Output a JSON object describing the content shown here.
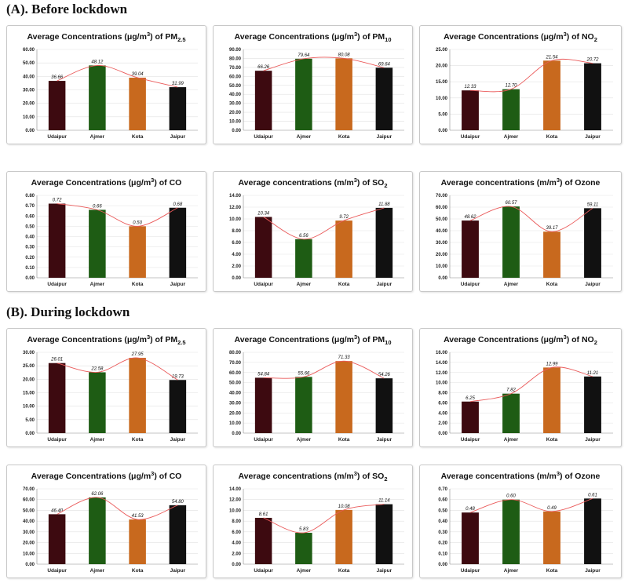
{
  "sections": [
    {
      "title": "(A). Before lockdown"
    },
    {
      "title": "(B). During lockdown"
    }
  ],
  "colors": {
    "bar_udaipur": "#3d0a10",
    "bar_ajmer": "#1e5c14",
    "bar_kota": "#c8691e",
    "bar_jaipur": "#111111",
    "trend_line": "#ea5a5a"
  },
  "chart_data": [
    {
      "type": "bar",
      "section": 0,
      "title_pre": "Average Concentrations (μg/m",
      "title_sup": "3",
      "title_mid": ") of PM",
      "title_sub": "2.5",
      "categories": [
        "Udaipur",
        "Ajmer",
        "Kota",
        "Jaipur"
      ],
      "values": [
        36.66,
        48.12,
        39.04,
        31.99
      ],
      "ylim": [
        0,
        60
      ],
      "yticks": [
        "0.00",
        "10.00",
        "20.00",
        "30.00",
        "40.00",
        "50.00",
        "60.00"
      ],
      "trendline": true
    },
    {
      "type": "bar",
      "section": 0,
      "title_pre": "Average Concentrations (μg/m",
      "title_sup": "3",
      "title_mid": ") of PM",
      "title_sub": "10",
      "categories": [
        "Udaipur",
        "Ajmer",
        "Kota",
        "Jaipur"
      ],
      "values": [
        66.26,
        79.64,
        80.08,
        69.64
      ],
      "ylim": [
        0,
        90
      ],
      "yticks": [
        "0.00",
        "10.00",
        "20.00",
        "30.00",
        "40.00",
        "50.00",
        "60.00",
        "70.00",
        "80.00",
        "90.00"
      ],
      "trendline": true
    },
    {
      "type": "bar",
      "section": 0,
      "title_pre": "Average Concentrations (μg/m",
      "title_sup": "3",
      "title_mid": ") of NO",
      "title_sub": "2",
      "categories": [
        "Udaipur",
        "Ajmer",
        "Kota",
        "Jaipur"
      ],
      "values": [
        12.33,
        12.7,
        21.54,
        20.72
      ],
      "ylim": [
        0,
        25
      ],
      "yticks": [
        "0.00",
        "5.00",
        "10.00",
        "15.00",
        "20.00",
        "25.00"
      ],
      "trendline": true
    },
    {
      "type": "bar",
      "section": 0,
      "title_pre": "Average Concentrations (μg/m",
      "title_sup": "3",
      "title_mid": ") of CO",
      "title_sub": "",
      "categories": [
        "Udaipur",
        "Ajmer",
        "Kota",
        "Jaipur"
      ],
      "values": [
        0.72,
        0.66,
        0.5,
        0.68
      ],
      "ylim": [
        0,
        0.8
      ],
      "yticks": [
        "0.00",
        "0.10",
        "0.20",
        "0.30",
        "0.40",
        "0.50",
        "0.60",
        "0.70",
        "0.80"
      ],
      "trendline": true
    },
    {
      "type": "bar",
      "section": 0,
      "title_pre": "Average concentrations (m/m",
      "title_sup": "3",
      "title_mid": ") of SO",
      "title_sub": "2",
      "categories": [
        "Udaipur",
        "Ajmer",
        "Kota",
        "Jaipur"
      ],
      "values": [
        10.34,
        6.56,
        9.72,
        11.88
      ],
      "ylim": [
        0,
        14
      ],
      "yticks": [
        "0.00",
        "2.00",
        "4.00",
        "6.00",
        "8.00",
        "10.00",
        "12.00",
        "14.00"
      ],
      "trendline": true
    },
    {
      "type": "bar",
      "section": 0,
      "title_pre": "Average concentrations (m/m",
      "title_sup": "3",
      "title_mid": ") of Ozone",
      "title_sub": "",
      "categories": [
        "Udaipur",
        "Ajmer",
        "Kota",
        "Jaipur"
      ],
      "values": [
        48.62,
        60.57,
        39.17,
        59.11
      ],
      "ylim": [
        0,
        70
      ],
      "yticks": [
        "0.00",
        "10.00",
        "20.00",
        "30.00",
        "40.00",
        "50.00",
        "60.00",
        "70.00"
      ],
      "trendline": true
    },
    {
      "type": "bar",
      "section": 1,
      "title_pre": "Average Concentrations (μg/m",
      "title_sup": "3",
      "title_mid": ") of PM",
      "title_sub": "2.5",
      "categories": [
        "Udaipur",
        "Ajmer",
        "Kota",
        "Jaipur"
      ],
      "values": [
        26.01,
        22.58,
        27.95,
        19.73
      ],
      "ylim": [
        0,
        30
      ],
      "yticks": [
        "0.00",
        "5.00",
        "10.00",
        "15.00",
        "20.00",
        "25.00",
        "30.00"
      ],
      "trendline": true
    },
    {
      "type": "bar",
      "section": 1,
      "title_pre": "Average Concentrations (μg/m",
      "title_sup": "3",
      "title_mid": ") of PM",
      "title_sub": "10",
      "categories": [
        "Udaipur",
        "Ajmer",
        "Kota",
        "Jaipur"
      ],
      "values": [
        54.84,
        55.66,
        71.33,
        54.26
      ],
      "ylim": [
        0,
        80
      ],
      "yticks": [
        "0.00",
        "10.00",
        "20.00",
        "30.00",
        "40.00",
        "50.00",
        "60.00",
        "70.00",
        "80.00"
      ],
      "trendline": true
    },
    {
      "type": "bar",
      "section": 1,
      "title_pre": "Average Concentrations (μg/m",
      "title_sup": "3",
      "title_mid": ") of NO",
      "title_sub": "2",
      "categories": [
        "Udaipur",
        "Ajmer",
        "Kota",
        "Jaipur"
      ],
      "values": [
        6.25,
        7.82,
        12.99,
        11.21
      ],
      "ylim": [
        0,
        16
      ],
      "yticks": [
        "0.00",
        "2.00",
        "4.00",
        "6.00",
        "8.00",
        "10.00",
        "12.00",
        "14.00",
        "16.00"
      ],
      "trendline": true
    },
    {
      "type": "bar",
      "section": 1,
      "title_pre": "Average Concentrations (μg/m",
      "title_sup": "3",
      "title_mid": ") of CO",
      "title_sub": "",
      "categories": [
        "Udaipur",
        "Ajmer",
        "Kota",
        "Jaipur"
      ],
      "values": [
        46.4,
        62.06,
        41.53,
        54.8
      ],
      "ylim": [
        0,
        70
      ],
      "yticks": [
        "0.00",
        "10.00",
        "20.00",
        "30.00",
        "40.00",
        "50.00",
        "60.00",
        "70.00"
      ],
      "trendline": true
    },
    {
      "type": "bar",
      "section": 1,
      "title_pre": "Average concentrations (m/m",
      "title_sup": "3",
      "title_mid": ") of SO",
      "title_sub": "2",
      "categories": [
        "Udaipur",
        "Ajmer",
        "Kota",
        "Jaipur"
      ],
      "values": [
        8.61,
        5.83,
        10.08,
        11.14
      ],
      "ylim": [
        0,
        14
      ],
      "yticks": [
        "0.00",
        "2.00",
        "4.00",
        "6.00",
        "8.00",
        "10.00",
        "12.00",
        "14.00"
      ],
      "trendline": true
    },
    {
      "type": "bar",
      "section": 1,
      "title_pre": "Average concentrations (m/m",
      "title_sup": "3",
      "title_mid": ") of Ozone",
      "title_sub": "",
      "categories": [
        "Udaipur",
        "Ajmer",
        "Kota",
        "Jaipur"
      ],
      "values": [
        0.48,
        0.6,
        0.49,
        0.61
      ],
      "ylim": [
        0,
        0.7
      ],
      "yticks": [
        "0.00",
        "0.10",
        "0.20",
        "0.30",
        "0.40",
        "0.50",
        "0.60",
        "0.70"
      ],
      "trendline": true
    }
  ]
}
